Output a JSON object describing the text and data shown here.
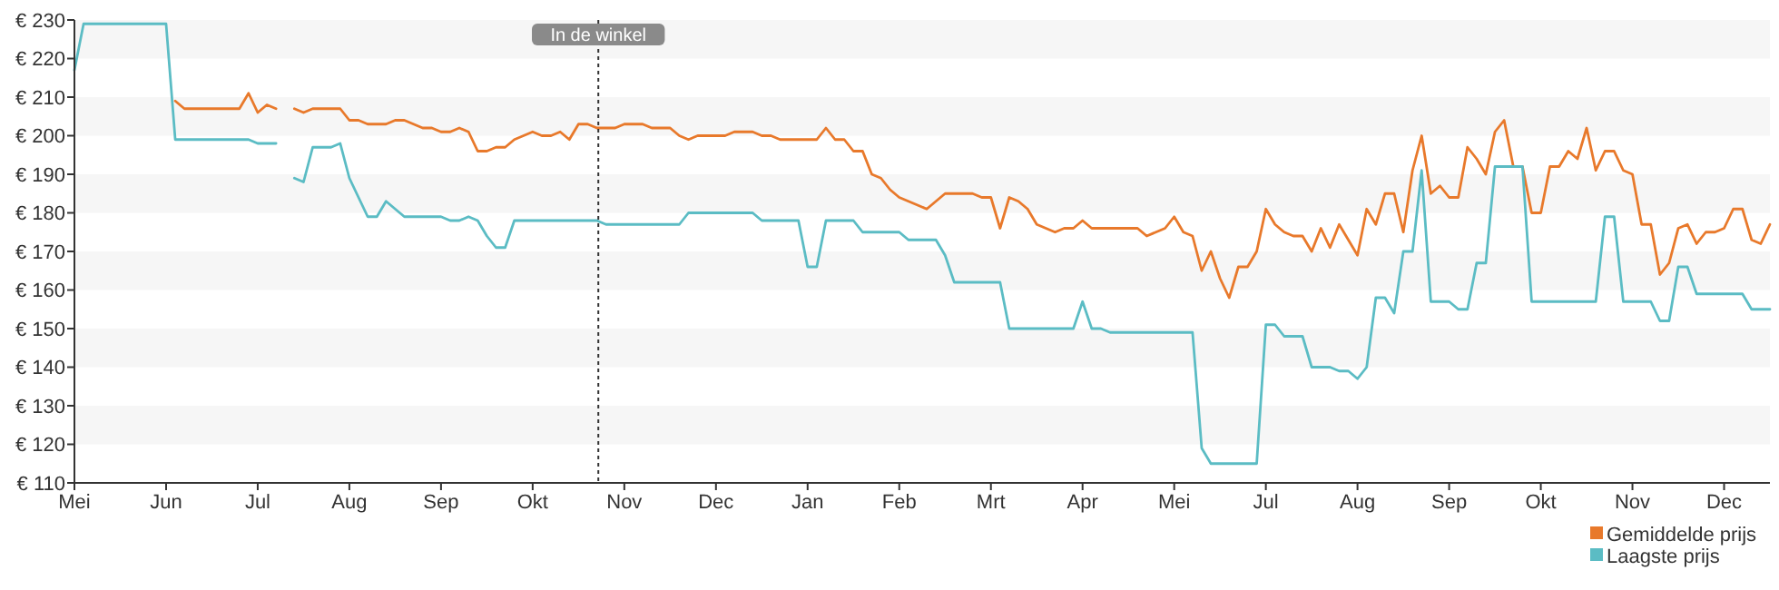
{
  "chart_data": {
    "type": "line",
    "categories": [
      "Mei",
      null,
      null,
      null,
      null,
      null,
      null,
      null,
      null,
      null,
      "Jun",
      null,
      null,
      null,
      null,
      null,
      null,
      null,
      null,
      null,
      "Jul",
      null,
      null,
      null,
      null,
      null,
      null,
      null,
      null,
      null,
      "Aug",
      null,
      null,
      null,
      null,
      null,
      null,
      null,
      null,
      null,
      "Sep",
      null,
      null,
      null,
      null,
      null,
      null,
      null,
      null,
      null,
      "Okt",
      null,
      null,
      null,
      null,
      null,
      null,
      null,
      null,
      null,
      "Nov",
      null,
      null,
      null,
      null,
      null,
      null,
      null,
      null,
      null,
      "Dec",
      null,
      null,
      null,
      null,
      null,
      null,
      null,
      null,
      null,
      "Jan",
      null,
      null,
      null,
      null,
      null,
      null,
      null,
      null,
      null,
      "Feb",
      null,
      null,
      null,
      null,
      null,
      null,
      null,
      null,
      null,
      "Mrt",
      null,
      null,
      null,
      null,
      null,
      null,
      null,
      null,
      null,
      "Apr",
      null,
      null,
      null,
      null,
      null,
      null,
      null,
      null,
      null,
      "Mei",
      null,
      null,
      null,
      null,
      null,
      null,
      null,
      null,
      null,
      "Jul",
      null,
      null,
      null,
      null,
      null,
      null,
      null,
      null,
      null,
      "Aug",
      null,
      null,
      null,
      null,
      null,
      null,
      null,
      null,
      null,
      "Sep",
      null,
      null,
      null,
      null,
      null,
      null,
      null,
      null,
      null,
      "Okt",
      null,
      null,
      null,
      null,
      null,
      null,
      null,
      null,
      null,
      "Nov",
      null,
      null,
      null,
      null,
      null,
      null,
      null,
      null,
      null,
      "Dec",
      null,
      null,
      null,
      null,
      null
    ],
    "ylim": [
      110,
      230
    ],
    "yticks": [
      {
        "value": 110,
        "label": "€ 110"
      },
      {
        "value": 120,
        "label": "€ 120"
      },
      {
        "value": 130,
        "label": "€ 130"
      },
      {
        "value": 140,
        "label": "€ 140"
      },
      {
        "value": 150,
        "label": "€ 150"
      },
      {
        "value": 160,
        "label": "€ 160"
      },
      {
        "value": 170,
        "label": "€ 170"
      },
      {
        "value": 180,
        "label": "€ 180"
      },
      {
        "value": 190,
        "label": "€ 190"
      },
      {
        "value": 200,
        "label": "€ 200"
      },
      {
        "value": 210,
        "label": "€ 210"
      },
      {
        "value": 220,
        "label": "€ 220"
      },
      {
        "value": 230,
        "label": "€ 230"
      }
    ],
    "legend": "bottom right",
    "annotations": [
      "In de winkel"
    ],
    "series": [
      {
        "name": "Gemiddelde prijs",
        "color": "#e8792b",
        "values": [
          null,
          null,
          null,
          null,
          null,
          null,
          null,
          null,
          null,
          null,
          null,
          209,
          207,
          207,
          207,
          207,
          207,
          207,
          207,
          211,
          206,
          208,
          207,
          null,
          207,
          206,
          207,
          207,
          207,
          207,
          204,
          204,
          203,
          203,
          203,
          204,
          204,
          203,
          202,
          202,
          201,
          201,
          202,
          201,
          196,
          196,
          197,
          197,
          199,
          200,
          201,
          200,
          200,
          201,
          199,
          203,
          203,
          202,
          202,
          202,
          203,
          203,
          203,
          202,
          202,
          202,
          200,
          199,
          200,
          200,
          200,
          200,
          201,
          201,
          201,
          200,
          200,
          199,
          199,
          199,
          199,
          199,
          202,
          199,
          199,
          196,
          196,
          190,
          189,
          186,
          184,
          183,
          182,
          181,
          183,
          185,
          185,
          185,
          185,
          184,
          184,
          176,
          184,
          183,
          181,
          177,
          176,
          175,
          176,
          176,
          178,
          176,
          176,
          176,
          176,
          176,
          176,
          174,
          175,
          176,
          179,
          175,
          174,
          165,
          170,
          163,
          158,
          166,
          166,
          170,
          181,
          177,
          175,
          174,
          174,
          170,
          176,
          171,
          177,
          173,
          169,
          181,
          177,
          185,
          185,
          175,
          191,
          200,
          185,
          187,
          184,
          184,
          197,
          194,
          190,
          201,
          204,
          192,
          192,
          180,
          180,
          192,
          192,
          196,
          194,
          202,
          191,
          196,
          196,
          191,
          190,
          177,
          177,
          164,
          167,
          176,
          177,
          172,
          175,
          175,
          176,
          181,
          181,
          173,
          172,
          177
        ]
      },
      {
        "name": "Laagste prijs",
        "color": "#5bbcc4",
        "values": [
          217,
          229,
          229,
          229,
          229,
          229,
          229,
          229,
          229,
          229,
          229,
          199,
          199,
          199,
          199,
          199,
          199,
          199,
          199,
          199,
          198,
          198,
          198,
          null,
          189,
          188,
          197,
          197,
          197,
          198,
          189,
          184,
          179,
          179,
          183,
          181,
          179,
          179,
          179,
          179,
          179,
          178,
          178,
          179,
          178,
          174,
          171,
          171,
          178,
          178,
          178,
          178,
          178,
          178,
          178,
          178,
          178,
          178,
          177,
          177,
          177,
          177,
          177,
          177,
          177,
          177,
          177,
          180,
          180,
          180,
          180,
          180,
          180,
          180,
          180,
          178,
          178,
          178,
          178,
          178,
          166,
          166,
          178,
          178,
          178,
          178,
          175,
          175,
          175,
          175,
          175,
          173,
          173,
          173,
          173,
          169,
          162,
          162,
          162,
          162,
          162,
          162,
          150,
          150,
          150,
          150,
          150,
          150,
          150,
          150,
          157,
          150,
          150,
          149,
          149,
          149,
          149,
          149,
          149,
          149,
          149,
          149,
          149,
          119,
          115,
          115,
          115,
          115,
          115,
          115,
          151,
          151,
          148,
          148,
          148,
          140,
          140,
          140,
          139,
          139,
          137,
          140,
          158,
          158,
          154,
          170,
          170,
          191,
          157,
          157,
          157,
          155,
          155,
          167,
          167,
          192,
          192,
          192,
          192,
          157,
          157,
          157,
          157,
          157,
          157,
          157,
          157,
          179,
          179,
          157,
          157,
          157,
          157,
          152,
          152,
          166,
          166,
          159,
          159,
          159,
          159,
          159,
          159,
          155,
          155,
          155
        ]
      }
    ]
  }
}
